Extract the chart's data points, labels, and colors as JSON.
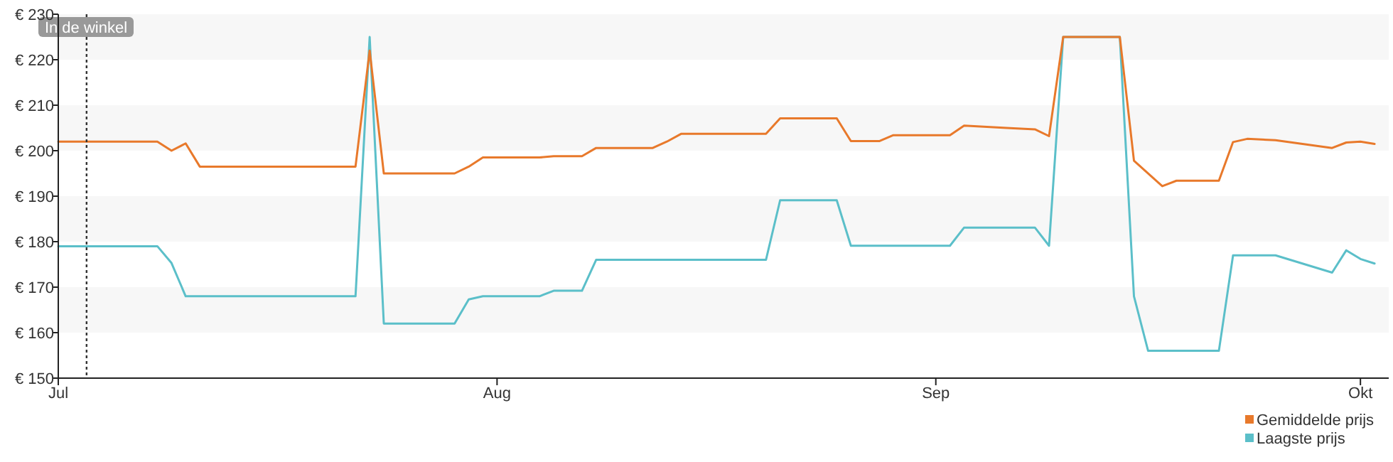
{
  "chart_data": {
    "type": "line",
    "series": [
      {
        "name": "Gemiddelde prijs",
        "color": "#e8792b",
        "x": [
          "--07-01",
          "--07-08",
          "--07-09",
          "--07-10",
          "--07-11",
          "--07-22",
          "--07-23",
          "--07-24",
          "--07-29",
          "--07-30",
          "--07-31",
          "--08-04",
          "--08-05",
          "--08-07",
          "--08-08",
          "--08-12",
          "--08-13",
          "--08-14",
          "--08-20",
          "--08-21",
          "--08-25",
          "--08-26",
          "--08-28",
          "--08-29",
          "--09-02",
          "--09-03",
          "--09-06",
          "--09-08",
          "--09-09",
          "--09-10",
          "--09-14",
          "--09-15",
          "--09-17",
          "--09-18",
          "--09-21",
          "--09-22",
          "--09-23",
          "--09-25",
          "--09-29",
          "--09-30",
          "--10-01",
          "--10-02"
        ],
        "values": [
          202,
          202,
          200,
          201.6,
          196.5,
          196.5,
          222,
          195,
          195,
          196.5,
          198.5,
          198.5,
          198.8,
          198.8,
          200.6,
          200.6,
          202,
          203.7,
          203.7,
          207.1,
          207.1,
          202.1,
          202.1,
          203.4,
          203.4,
          205.5,
          205,
          204.7,
          203.2,
          225,
          225,
          197.8,
          192.2,
          193.4,
          193.4,
          201.9,
          202.6,
          202.3,
          200.6,
          201.8,
          202,
          201.5
        ]
      },
      {
        "name": "Laagste prijs",
        "color": "#5bbfc9",
        "x": [
          "--07-01",
          "--07-08",
          "--07-09",
          "--07-10",
          "--07-22",
          "--07-23",
          "--07-24",
          "--07-29",
          "--07-30",
          "--07-31",
          "--08-04",
          "--08-05",
          "--08-07",
          "--08-08",
          "--08-20",
          "--08-21",
          "--08-25",
          "--08-26",
          "--09-02",
          "--09-03",
          "--09-08",
          "--09-09",
          "--09-10",
          "--09-14",
          "--09-15",
          "--09-16",
          "--09-21",
          "--09-22",
          "--09-25",
          "--09-29",
          "--09-30",
          "--10-01",
          "--10-02"
        ],
        "values": [
          179,
          179,
          175.3,
          168,
          168,
          225,
          162,
          162,
          167.3,
          168,
          168,
          169.2,
          169.2,
          176,
          176,
          189.1,
          189.1,
          179.1,
          179.1,
          183.1,
          183.1,
          179.1,
          225,
          225,
          168,
          156,
          156,
          177,
          177,
          173.2,
          178.1,
          176.2,
          175.2
        ]
      }
    ],
    "xlim": [
      "--07-01",
      "--10-03"
    ],
    "xticks": [
      {
        "value": "--07-01",
        "label": "Jul"
      },
      {
        "value": "--08-01",
        "label": "Aug"
      },
      {
        "value": "--09-01",
        "label": "Sep"
      },
      {
        "value": "--10-01",
        "label": "Okt"
      }
    ],
    "ylim": [
      150,
      230
    ],
    "yticks": [
      {
        "value": 150,
        "label": "€ 150"
      },
      {
        "value": 160,
        "label": "€ 160"
      },
      {
        "value": 170,
        "label": "€ 170"
      },
      {
        "value": 180,
        "label": "€ 180"
      },
      {
        "value": 190,
        "label": "€ 190"
      },
      {
        "value": 200,
        "label": "€ 200"
      },
      {
        "value": 210,
        "label": "€ 210"
      },
      {
        "value": 220,
        "label": "€ 220"
      },
      {
        "value": 230,
        "label": "€ 230"
      }
    ],
    "bands": [
      {
        "axis": "y",
        "from": 160,
        "to": 170,
        "color": "#f7f7f7"
      },
      {
        "axis": "y",
        "from": 180,
        "to": 190,
        "color": "#f7f7f7"
      },
      {
        "axis": "y",
        "from": 200,
        "to": 210,
        "color": "#f7f7f7"
      },
      {
        "axis": "y",
        "from": 220,
        "to": 230,
        "color": "#f7f7f7"
      }
    ],
    "ref_lines": [
      {
        "axis": "x",
        "value": "--07-03",
        "label": "In de winkel",
        "line_style": "dotted",
        "color": "#333333"
      }
    ],
    "legend": "bottom right",
    "line_style": "solid",
    "marker": "none"
  }
}
